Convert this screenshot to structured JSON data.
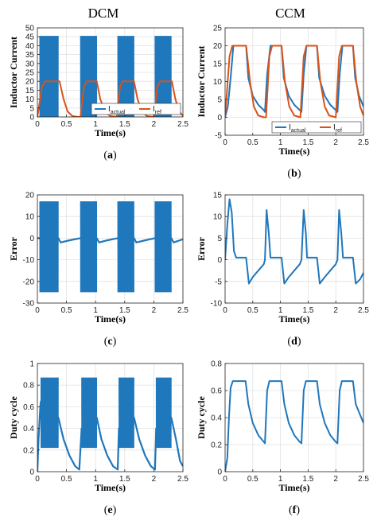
{
  "column_titles": {
    "left": "DCM",
    "right": "CCM"
  },
  "colors": {
    "actual": "#1f77bc",
    "ref": "#d95319"
  },
  "chart_data": [
    {
      "id": "a",
      "type": "line",
      "panel_label": "a",
      "xlabel": "Time(s)",
      "ylabel": "Inductor Current",
      "xlim": [
        0,
        2.5
      ],
      "ylim": [
        0,
        50
      ],
      "xticks": [
        0,
        0.5,
        1,
        1.5,
        2,
        2.5
      ],
      "yticks": [
        0,
        5,
        10,
        15,
        20,
        25,
        30,
        35,
        40,
        45,
        50
      ],
      "grid": true,
      "legend": "bottom-right",
      "series": [
        {
          "name": "I",
          "sub": "actual",
          "style": "oscillating",
          "on_intervals": [
            [
              0.04,
              0.36
            ],
            [
              0.74,
              1.02
            ],
            [
              1.38,
              1.66
            ],
            [
              2.02,
              2.3
            ]
          ],
          "upper": 45.5,
          "lower": 0
        },
        {
          "name": "I",
          "sub": "ref",
          "style": "line",
          "points": [
            [
              0,
              0
            ],
            [
              0.08,
              17
            ],
            [
              0.13,
              20
            ],
            [
              0.38,
              20
            ],
            [
              0.45,
              10
            ],
            [
              0.52,
              3
            ],
            [
              0.6,
              0.5
            ],
            [
              0.7,
              0
            ],
            [
              0.74,
              0
            ],
            [
              0.8,
              17
            ],
            [
              0.85,
              20
            ],
            [
              1.02,
              20
            ],
            [
              1.08,
              10
            ],
            [
              1.16,
              3
            ],
            [
              1.25,
              0.5
            ],
            [
              1.36,
              0
            ],
            [
              1.42,
              17
            ],
            [
              1.47,
              20
            ],
            [
              1.66,
              20
            ],
            [
              1.72,
              10
            ],
            [
              1.8,
              3
            ],
            [
              1.88,
              0.5
            ],
            [
              2.0,
              0
            ],
            [
              2.06,
              17
            ],
            [
              2.11,
              20
            ],
            [
              2.31,
              20
            ],
            [
              2.37,
              10
            ],
            [
              2.44,
              3
            ],
            [
              2.5,
              0.5
            ]
          ]
        }
      ]
    },
    {
      "id": "b",
      "type": "line",
      "panel_label": "b",
      "xlabel": "Time(s)",
      "ylabel": "Inductor Current",
      "xlim": [
        0,
        2.5
      ],
      "ylim": [
        -5,
        25
      ],
      "xticks": [
        0,
        0.5,
        1,
        1.5,
        2,
        2.5
      ],
      "yticks": [
        -5,
        0,
        5,
        10,
        15,
        20,
        25
      ],
      "grid": true,
      "legend": "bottom-right",
      "series": [
        {
          "name": "I",
          "sub": "actual",
          "style": "line",
          "points": [
            [
              0,
              0
            ],
            [
              0.05,
              3
            ],
            [
              0.1,
              11
            ],
            [
              0.15,
              20
            ],
            [
              0.38,
              20
            ],
            [
              0.42,
              11
            ],
            [
              0.5,
              6
            ],
            [
              0.6,
              3.5
            ],
            [
              0.7,
              2
            ],
            [
              0.72,
              1.5
            ],
            [
              0.76,
              12
            ],
            [
              0.82,
              20
            ],
            [
              1.02,
              20
            ],
            [
              1.06,
              11
            ],
            [
              1.15,
              6
            ],
            [
              1.25,
              3.5
            ],
            [
              1.35,
              2
            ],
            [
              1.38,
              1.5
            ],
            [
              1.42,
              12
            ],
            [
              1.47,
              20
            ],
            [
              1.66,
              20
            ],
            [
              1.7,
              11
            ],
            [
              1.8,
              6
            ],
            [
              1.9,
              3.5
            ],
            [
              2.0,
              2
            ],
            [
              2.03,
              1.5
            ],
            [
              2.07,
              12
            ],
            [
              2.12,
              20
            ],
            [
              2.31,
              20
            ],
            [
              2.35,
              11
            ],
            [
              2.42,
              6
            ],
            [
              2.5,
              3
            ]
          ]
        },
        {
          "name": "I",
          "sub": "ref",
          "style": "line",
          "points": [
            [
              0,
              0
            ],
            [
              0.08,
              17
            ],
            [
              0.13,
              20
            ],
            [
              0.38,
              20
            ],
            [
              0.45,
              10
            ],
            [
              0.52,
              3
            ],
            [
              0.6,
              0.5
            ],
            [
              0.7,
              0
            ],
            [
              0.74,
              0
            ],
            [
              0.8,
              17
            ],
            [
              0.85,
              20
            ],
            [
              1.02,
              20
            ],
            [
              1.08,
              10
            ],
            [
              1.16,
              3
            ],
            [
              1.25,
              0.5
            ],
            [
              1.36,
              0
            ],
            [
              1.42,
              17
            ],
            [
              1.47,
              20
            ],
            [
              1.66,
              20
            ],
            [
              1.72,
              10
            ],
            [
              1.8,
              3
            ],
            [
              1.88,
              0.5
            ],
            [
              2.0,
              0
            ],
            [
              2.06,
              17
            ],
            [
              2.11,
              20
            ],
            [
              2.31,
              20
            ],
            [
              2.37,
              10
            ],
            [
              2.44,
              3
            ],
            [
              2.5,
              0.5
            ]
          ]
        }
      ]
    },
    {
      "id": "c",
      "type": "line",
      "panel_label": "c",
      "xlabel": "Time(s)",
      "ylabel": "Error",
      "xlim": [
        0,
        2.5
      ],
      "ylim": [
        -30,
        20
      ],
      "xticks": [
        0,
        0.5,
        1,
        1.5,
        2,
        2.5
      ],
      "yticks": [
        -30,
        -20,
        -10,
        0,
        10,
        20
      ],
      "grid": true,
      "series": [
        {
          "name": "error",
          "style": "oscillating",
          "on_intervals": [
            [
              0.04,
              0.36
            ],
            [
              0.74,
              1.02
            ],
            [
              1.38,
              1.66
            ],
            [
              2.02,
              2.3
            ]
          ],
          "upper": 17,
          "lower": -25,
          "baseline": [
            [
              0,
              0
            ],
            [
              0.04,
              0
            ],
            [
              0.36,
              0
            ],
            [
              0.4,
              -2
            ],
            [
              0.55,
              -1
            ],
            [
              0.74,
              0
            ],
            [
              1.02,
              0
            ],
            [
              1.06,
              -2
            ],
            [
              1.2,
              -1
            ],
            [
              1.38,
              0
            ],
            [
              1.66,
              0
            ],
            [
              1.7,
              -2
            ],
            [
              1.85,
              -1
            ],
            [
              2.02,
              0
            ],
            [
              2.3,
              0
            ],
            [
              2.34,
              -2
            ],
            [
              2.5,
              -0.5
            ]
          ]
        }
      ]
    },
    {
      "id": "d",
      "type": "line",
      "panel_label": "d",
      "xlabel": "Time(s)",
      "ylabel": "Error",
      "xlim": [
        0,
        2.5
      ],
      "ylim": [
        -10,
        15
      ],
      "xticks": [
        0,
        0.5,
        1,
        1.5,
        2,
        2.5
      ],
      "yticks": [
        -10,
        -5,
        0,
        5,
        10,
        15
      ],
      "grid": true,
      "series": [
        {
          "name": "error",
          "style": "line",
          "points": [
            [
              0,
              0
            ],
            [
              0.04,
              8
            ],
            [
              0.08,
              14
            ],
            [
              0.12,
              11
            ],
            [
              0.16,
              2
            ],
            [
              0.2,
              0.5
            ],
            [
              0.38,
              0.5
            ],
            [
              0.43,
              -5.5
            ],
            [
              0.5,
              -4
            ],
            [
              0.6,
              -2.5
            ],
            [
              0.7,
              -1
            ],
            [
              0.72,
              0
            ],
            [
              0.75,
              11.5
            ],
            [
              0.79,
              6
            ],
            [
              0.82,
              0.5
            ],
            [
              1.02,
              0.5
            ],
            [
              1.07,
              -5.5
            ],
            [
              1.15,
              -4
            ],
            [
              1.25,
              -2.5
            ],
            [
              1.35,
              -1
            ],
            [
              1.38,
              0
            ],
            [
              1.42,
              11.5
            ],
            [
              1.46,
              6
            ],
            [
              1.48,
              0.5
            ],
            [
              1.66,
              0.5
            ],
            [
              1.71,
              -5.5
            ],
            [
              1.8,
              -4
            ],
            [
              1.9,
              -2.5
            ],
            [
              2.0,
              -1
            ],
            [
              2.03,
              0
            ],
            [
              2.06,
              11.5
            ],
            [
              2.1,
              6
            ],
            [
              2.13,
              0.5
            ],
            [
              2.31,
              0.5
            ],
            [
              2.36,
              -5.5
            ],
            [
              2.44,
              -4.5
            ],
            [
              2.5,
              -3
            ]
          ]
        }
      ]
    },
    {
      "id": "e",
      "type": "line",
      "panel_label": "e",
      "xlabel": "Time(s)",
      "ylabel": "Duty cycle",
      "xlim": [
        0,
        2.5
      ],
      "ylim": [
        0,
        1
      ],
      "xticks": [
        0,
        0.5,
        1,
        1.5,
        2,
        2.5
      ],
      "yticks": [
        0,
        0.2,
        0.4,
        0.6,
        0.8,
        1
      ],
      "grid": true,
      "series": [
        {
          "name": "duty",
          "style": "oscillating",
          "on_intervals": [
            [
              0.06,
              0.36
            ],
            [
              0.76,
              1.02
            ],
            [
              1.4,
              1.66
            ],
            [
              2.04,
              2.3
            ]
          ],
          "upper": 0.87,
          "lower": 0.22,
          "baseline": [
            [
              0,
              0
            ],
            [
              0.02,
              0.3
            ],
            [
              0.05,
              0.6
            ],
            [
              0.06,
              0.65
            ],
            [
              0.36,
              0.5
            ],
            [
              0.45,
              0.3
            ],
            [
              0.55,
              0.15
            ],
            [
              0.65,
              0.05
            ],
            [
              0.72,
              0.02
            ],
            [
              0.76,
              0.4
            ],
            [
              1.02,
              0.5
            ],
            [
              1.1,
              0.3
            ],
            [
              1.2,
              0.15
            ],
            [
              1.3,
              0.05
            ],
            [
              1.38,
              0.02
            ],
            [
              1.4,
              0.4
            ],
            [
              1.66,
              0.5
            ],
            [
              1.75,
              0.3
            ],
            [
              1.85,
              0.15
            ],
            [
              1.95,
              0.05
            ],
            [
              2.02,
              0.02
            ],
            [
              2.04,
              0.4
            ],
            [
              2.3,
              0.5
            ],
            [
              2.38,
              0.3
            ],
            [
              2.45,
              0.1
            ],
            [
              2.5,
              0.05
            ]
          ]
        }
      ]
    },
    {
      "id": "f",
      "type": "line",
      "panel_label": "f",
      "xlabel": "Time(s)",
      "ylabel": "Duty cycle",
      "xlim": [
        0,
        2.5
      ],
      "ylim": [
        0,
        0.8
      ],
      "xticks": [
        0,
        0.5,
        1,
        1.5,
        2,
        2.5
      ],
      "yticks": [
        0,
        0.2,
        0.4,
        0.6,
        0.8
      ],
      "grid": true,
      "series": [
        {
          "name": "duty",
          "style": "line",
          "points": [
            [
              0,
              0
            ],
            [
              0.04,
              0.1
            ],
            [
              0.07,
              0.4
            ],
            [
              0.1,
              0.62
            ],
            [
              0.14,
              0.67
            ],
            [
              0.37,
              0.67
            ],
            [
              0.42,
              0.5
            ],
            [
              0.5,
              0.36
            ],
            [
              0.6,
              0.27
            ],
            [
              0.7,
              0.22
            ],
            [
              0.72,
              0.21
            ],
            [
              0.76,
              0.6
            ],
            [
              0.8,
              0.67
            ],
            [
              1.02,
              0.67
            ],
            [
              1.07,
              0.5
            ],
            [
              1.15,
              0.36
            ],
            [
              1.25,
              0.27
            ],
            [
              1.35,
              0.22
            ],
            [
              1.38,
              0.21
            ],
            [
              1.42,
              0.6
            ],
            [
              1.46,
              0.67
            ],
            [
              1.66,
              0.67
            ],
            [
              1.71,
              0.5
            ],
            [
              1.8,
              0.36
            ],
            [
              1.9,
              0.27
            ],
            [
              2.0,
              0.22
            ],
            [
              2.03,
              0.21
            ],
            [
              2.07,
              0.6
            ],
            [
              2.11,
              0.67
            ],
            [
              2.31,
              0.67
            ],
            [
              2.36,
              0.5
            ],
            [
              2.44,
              0.42
            ],
            [
              2.5,
              0.36
            ]
          ]
        }
      ]
    }
  ]
}
